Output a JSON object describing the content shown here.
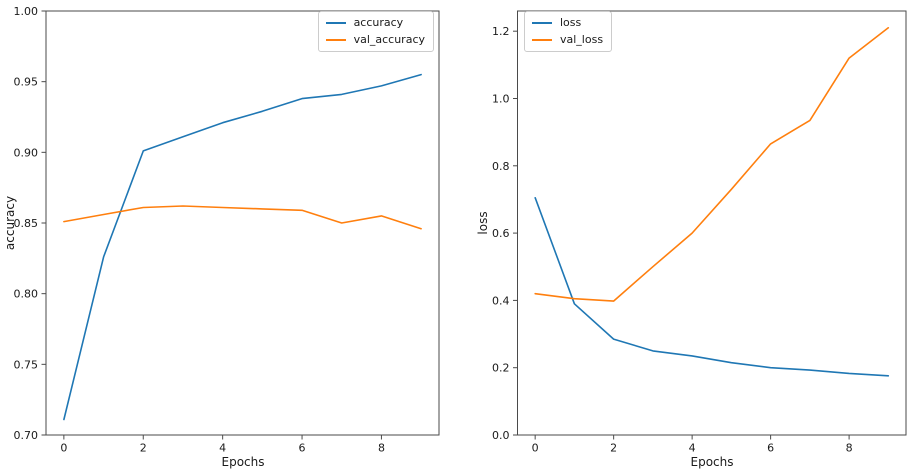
{
  "figure": {
    "background": "#ffffff",
    "text_color": "#1a1a1a",
    "spine_color": "#4a4a4a"
  },
  "chart_data": [
    {
      "type": "line",
      "xlabel": "Epochs",
      "ylabel": "accuracy",
      "x": [
        0,
        1,
        2,
        3,
        4,
        5,
        6,
        7,
        8,
        9
      ],
      "xlim": [
        -0.45,
        9.45
      ],
      "ylim": [
        0.7,
        1.0
      ],
      "xticks": [
        0,
        2,
        4,
        6,
        8
      ],
      "xtick_labels": [
        "0",
        "2",
        "4",
        "6",
        "8"
      ],
      "yticks": [
        0.7,
        0.75,
        0.8,
        0.85,
        0.9,
        0.95,
        1.0
      ],
      "ytick_labels": [
        "0.70",
        "0.75",
        "0.80",
        "0.85",
        "0.90",
        "0.95",
        "1.00"
      ],
      "grid": false,
      "legend_position": "top-right",
      "series": [
        {
          "name": "accuracy",
          "color": "#1f77b4",
          "values": [
            0.711,
            0.826,
            0.901,
            0.911,
            0.921,
            0.929,
            0.938,
            0.941,
            0.947,
            0.955
          ]
        },
        {
          "name": "val_accuracy",
          "color": "#ff7f0e",
          "values": [
            0.851,
            0.856,
            0.861,
            0.862,
            0.861,
            0.86,
            0.859,
            0.85,
            0.855,
            0.846
          ]
        }
      ]
    },
    {
      "type": "line",
      "xlabel": "Epochs",
      "ylabel": "loss",
      "x": [
        0,
        1,
        2,
        3,
        4,
        5,
        6,
        7,
        8,
        9
      ],
      "xlim": [
        -0.45,
        9.45
      ],
      "ylim": [
        0.0,
        1.26
      ],
      "xticks": [
        0,
        2,
        4,
        6,
        8
      ],
      "xtick_labels": [
        "0",
        "2",
        "4",
        "6",
        "8"
      ],
      "yticks": [
        0.0,
        0.2,
        0.4,
        0.6,
        0.8,
        1.0,
        1.2
      ],
      "ytick_labels": [
        "0.0",
        "0.2",
        "0.4",
        "0.6",
        "0.8",
        "1.0",
        "1.2"
      ],
      "grid": false,
      "legend_position": "top-left",
      "series": [
        {
          "name": "loss",
          "color": "#1f77b4",
          "values": [
            0.705,
            0.39,
            0.285,
            0.25,
            0.235,
            0.215,
            0.2,
            0.193,
            0.183,
            0.176
          ]
        },
        {
          "name": "val_loss",
          "color": "#ff7f0e",
          "values": [
            0.42,
            0.405,
            0.398,
            0.5,
            0.6,
            0.73,
            0.865,
            0.935,
            1.12,
            1.21
          ]
        }
      ]
    }
  ]
}
